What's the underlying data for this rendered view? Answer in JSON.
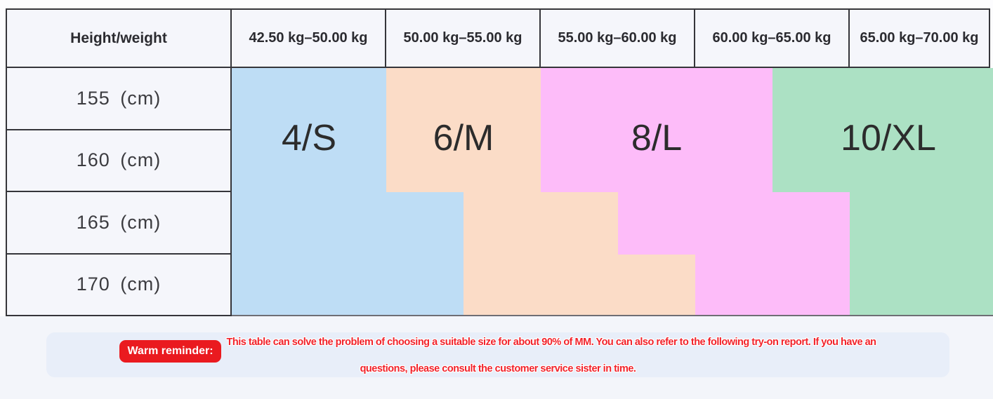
{
  "chart_data": {
    "type": "table",
    "corner_header": "Height/weight",
    "weight_columns": [
      "42.50 kg–50.00 kg",
      "50.00 kg–55.00 kg",
      "55.00 kg–60.00 kg",
      "60.00 kg–65.00 kg",
      "65.00 kg–70.00 kg"
    ],
    "height_rows": [
      "155 (cm)",
      "160 (cm)",
      "165 (cm)",
      "170 (cm)"
    ],
    "span_format": "[row_start,row_end,col_start,col_end] in grid units; fractional column = size boundary in middle of a weight column",
    "regions": [
      {
        "label": "4/S",
        "color": "#BEDDF5",
        "spans": [
          [
            0,
            2,
            0,
            1
          ],
          [
            2,
            4,
            0,
            1.5
          ]
        ]
      },
      {
        "label": "6/M",
        "color": "#FBDCC7",
        "spans": [
          [
            0,
            2,
            1,
            2
          ],
          [
            2,
            3,
            1.5,
            2.5
          ],
          [
            3,
            4,
            1.5,
            3
          ]
        ]
      },
      {
        "label": "8/L",
        "color": "#FDBCF9",
        "spans": [
          [
            0,
            2,
            2,
            3.5
          ],
          [
            2,
            3,
            2.5,
            4
          ],
          [
            3,
            4,
            3,
            4
          ]
        ]
      },
      {
        "label": "10/XL",
        "color": "#ACE1C4",
        "spans": [
          [
            0,
            2,
            3.5,
            5
          ],
          [
            2,
            4,
            4,
            5
          ]
        ]
      }
    ]
  },
  "reminder": {
    "badge_label": "Warm reminder:",
    "text_line1": "This table can solve the problem of choosing a suitable size for about 90% of MM. You can also refer to the following try-on report. If you have an",
    "text_line2": "questions, please consult the customer service sister in time."
  },
  "colors": {
    "page_bg": "#FCFCFE",
    "bottom_bg": "#F3F5FA",
    "cell_bg": "#F5F6FB",
    "border": "#35353A",
    "grid_line": "#6E6E74",
    "box_bg": "#E8EEF9",
    "badge_bg": "#EA1A1F",
    "text_red": "#F2232B"
  }
}
